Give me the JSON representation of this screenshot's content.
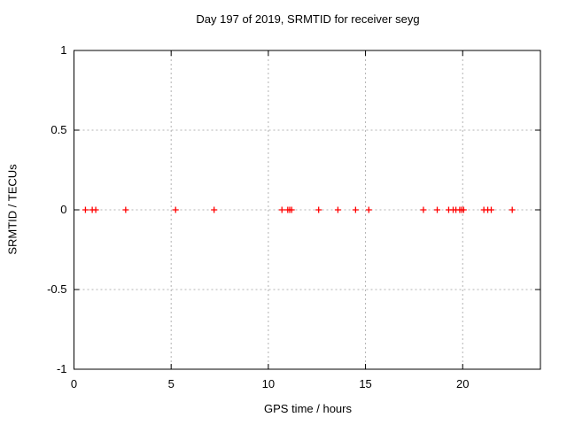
{
  "window": {
    "background_color": "#ffffff"
  },
  "chart_data": {
    "type": "scatter",
    "title": "Day 197 of 2019, SRMTID for receiver seyg",
    "xlabel": "GPS time / hours",
    "ylabel": "SRMTID / TECUs",
    "xlim": [
      0,
      24
    ],
    "ylim": [
      -1,
      1
    ],
    "x_ticks": [
      0,
      5,
      10,
      15,
      20
    ],
    "y_ticks": [
      -1,
      -0.5,
      0,
      0.5,
      1
    ],
    "grid": true,
    "legend": "none",
    "marker": "plus",
    "marker_color": "#ff0000",
    "grid_color": "#b3b3b3",
    "axis_color": "#000000",
    "series": [
      {
        "name": "",
        "x": [
          0.59,
          0.94,
          1.12,
          2.66,
          5.23,
          7.21,
          10.7,
          11.0,
          11.1,
          11.2,
          12.59,
          13.58,
          14.49,
          15.17,
          17.98,
          18.69,
          19.28,
          19.51,
          19.65,
          19.85,
          19.95,
          20.05,
          21.09,
          21.29,
          21.47,
          22.55
        ],
        "y": [
          0,
          0,
          0,
          0,
          0,
          0,
          0,
          0,
          0,
          0,
          0,
          0,
          0,
          0,
          0,
          0,
          0,
          0,
          0,
          0,
          0,
          0,
          0,
          0,
          0,
          0
        ]
      }
    ]
  }
}
